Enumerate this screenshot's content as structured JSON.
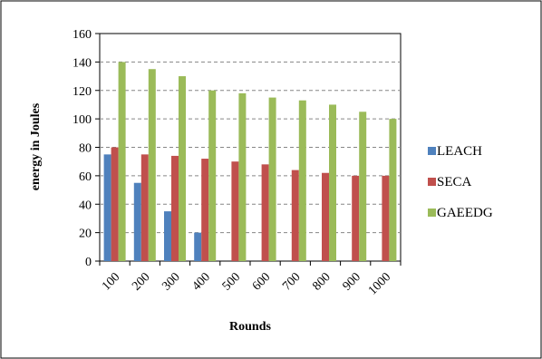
{
  "chart_data": {
    "type": "bar",
    "title": "",
    "xlabel": "Rounds",
    "ylabel": "energy in Joules",
    "ylim": [
      0,
      160
    ],
    "yticks": [
      0,
      20,
      40,
      60,
      80,
      100,
      120,
      140,
      160
    ],
    "categories": [
      "100",
      "200",
      "300",
      "400",
      "500",
      "600",
      "700",
      "800",
      "900",
      "1000"
    ],
    "series": [
      {
        "name": "LEACH",
        "color": "#4F81BD",
        "values": [
          75,
          55,
          35,
          20,
          0,
          0,
          0,
          0,
          0,
          0
        ]
      },
      {
        "name": "SECA",
        "color": "#C0504D",
        "values": [
          80,
          75,
          74,
          72,
          70,
          68,
          64,
          62,
          60,
          60
        ]
      },
      {
        "name": "GAEEDG",
        "color": "#9BBB59",
        "values": [
          140,
          135,
          130,
          120,
          118,
          115,
          113,
          110,
          105,
          100
        ]
      }
    ],
    "grid": "horizontal dashed",
    "legend_position": "right"
  }
}
